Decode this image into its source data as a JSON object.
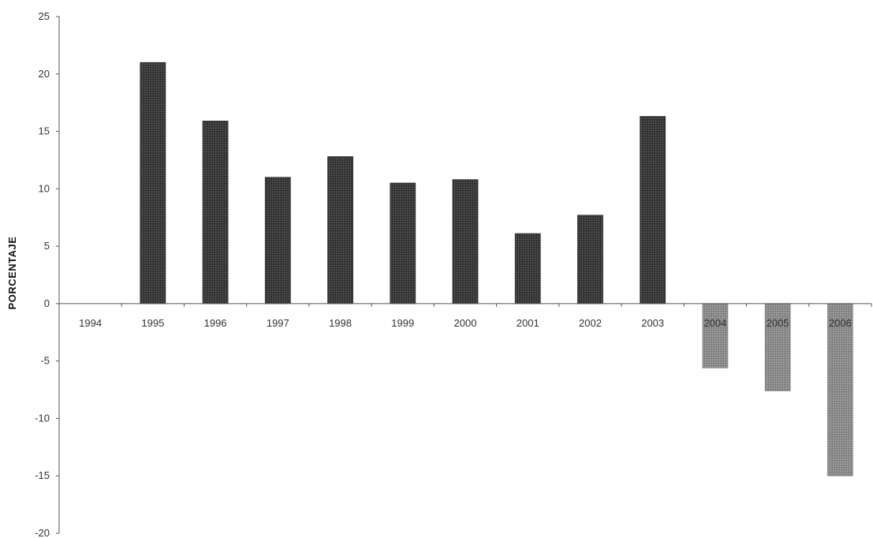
{
  "chart_data": {
    "type": "bar",
    "title": "",
    "xlabel": "",
    "ylabel": "PORCENTAJE",
    "categories": [
      "1994",
      "1995",
      "1996",
      "1997",
      "1998",
      "1999",
      "2000",
      "2001",
      "2002",
      "2003",
      "2004",
      "2005",
      "2006"
    ],
    "values": [
      0,
      21,
      15.9,
      11,
      12.8,
      10.5,
      10.8,
      6.1,
      7.7,
      16.3,
      -5.6,
      -7.6,
      -15
    ],
    "ylim": [
      -20,
      25
    ],
    "yticks": [
      25,
      20,
      15,
      10,
      5,
      0,
      -5,
      -10,
      -15,
      -20
    ],
    "grid": false,
    "legend": "none",
    "colors": {
      "positive_bar": "#2e2e2e",
      "negative_bar": "#8a8a8a",
      "axis": "#555555"
    }
  }
}
